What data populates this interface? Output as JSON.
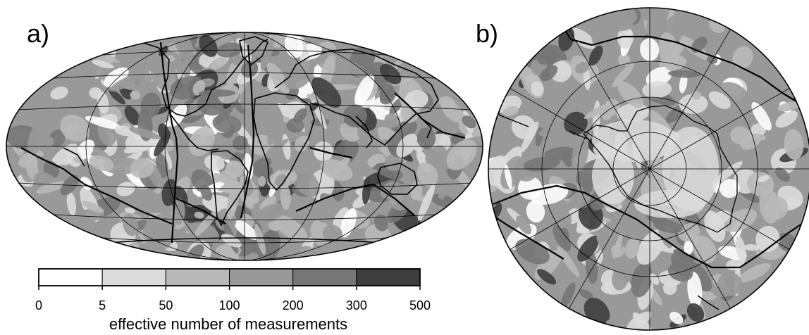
{
  "panels": {
    "a": {
      "label": "a)"
    },
    "b": {
      "label": "b)"
    }
  },
  "colorbar": {
    "title": "effective number of measurements",
    "ticks": [
      "0",
      "5",
      "50",
      "100",
      "200",
      "300",
      "500"
    ],
    "bins": [
      {
        "from": "0",
        "to": "5",
        "color": "#ffffff"
      },
      {
        "from": "5",
        "to": "50",
        "color": "#dcdcdc"
      },
      {
        "from": "50",
        "to": "100",
        "color": "#b9b9b9"
      },
      {
        "from": "100",
        "to": "200",
        "color": "#999999"
      },
      {
        "from": "200",
        "to": "300",
        "color": "#767676"
      },
      {
        "from": "300",
        "to": "500",
        "color": "#3e3e3e"
      }
    ]
  },
  "colors": {
    "coastline": "#000000",
    "plate_boundary": "#000000",
    "graticule": "#000000",
    "background": "#ffffff"
  }
}
